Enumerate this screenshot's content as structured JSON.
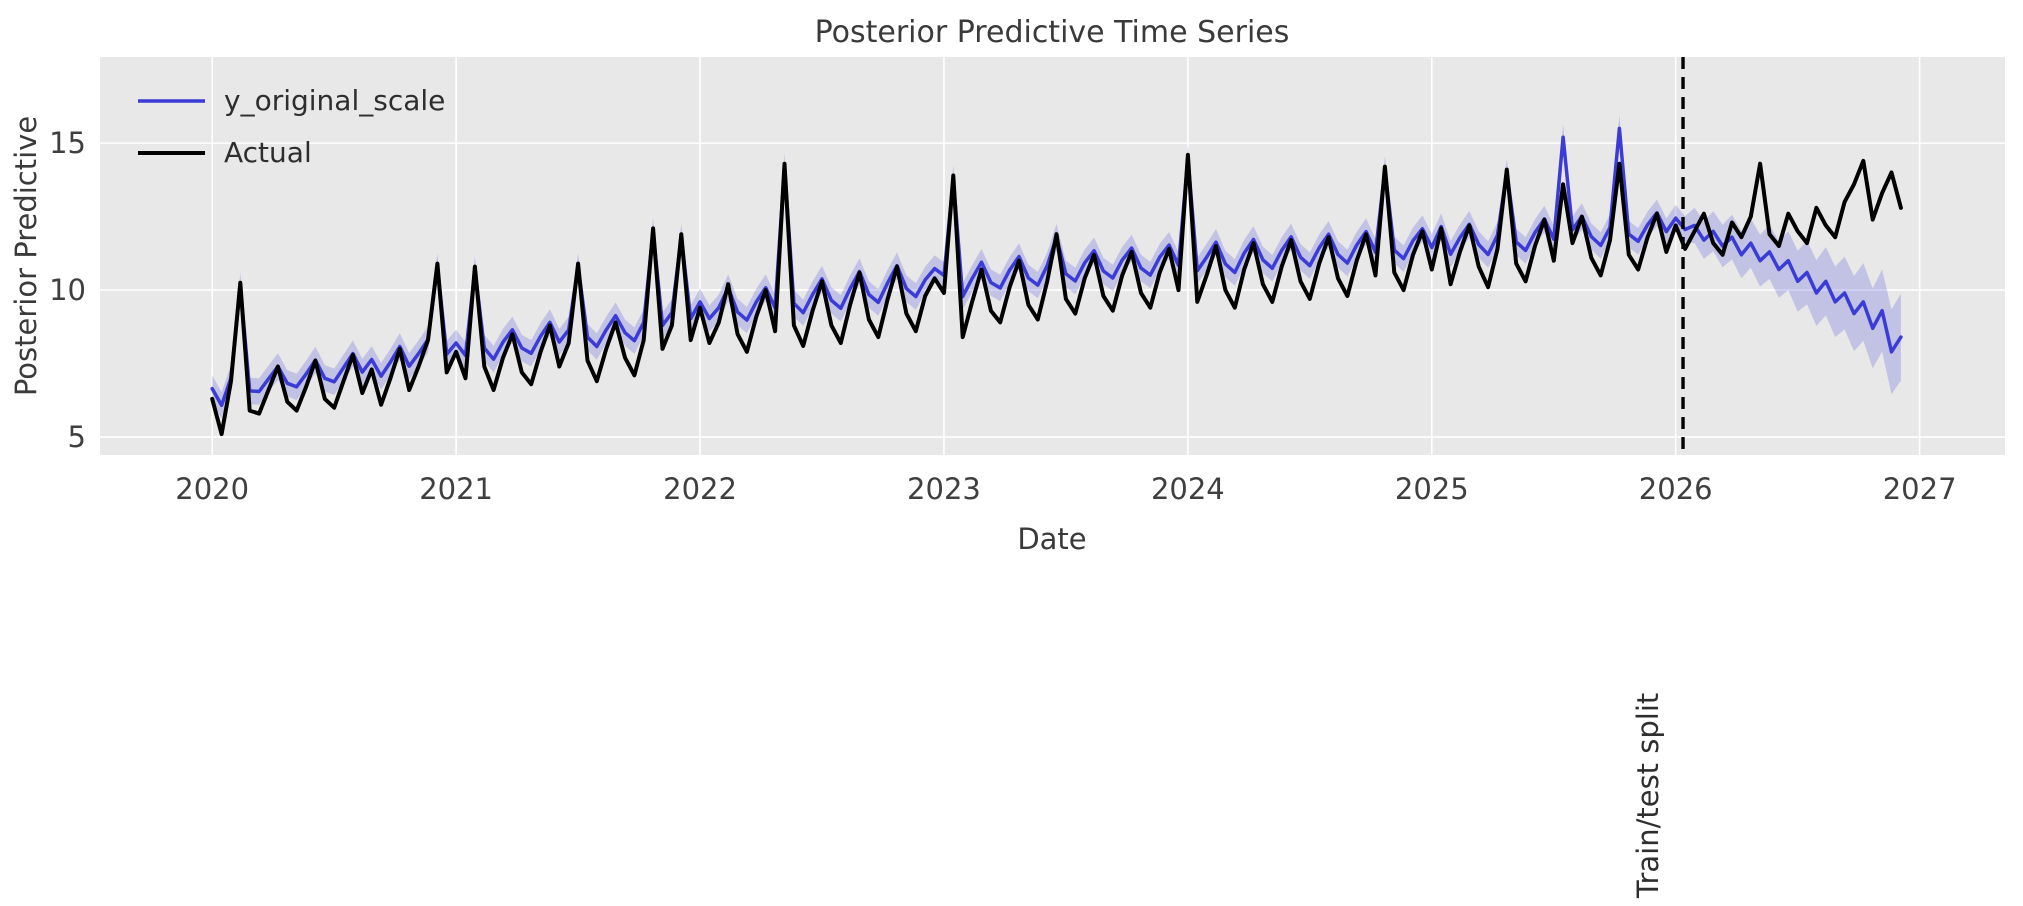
{
  "figure": {
    "title": "Posterior Predictive Time Series",
    "xlabel": "Date",
    "ylabel": "Posterior Predictive",
    "split_annotation": "Train/test split",
    "colors": {
      "plot_background": "#e8e8e8",
      "grid": "#ffffff",
      "prediction_line": "#3b3bd6",
      "actual_line": "#000000",
      "uncertainty_band": "rgba(80,80,215,0.25)",
      "split_line": "#000000",
      "text": "#3a3a3a",
      "tick_text": "#3f3f3f"
    }
  },
  "chart_data": {
    "type": "line",
    "title": "Posterior Predictive Time Series",
    "xlabel": "Date",
    "ylabel": "Posterior Predictive",
    "x_start": 2020.0,
    "x_step_years": 0.0384615,
    "n_points": 181,
    "xlim": [
      2019.54,
      2027.35
    ],
    "ylim": [
      4.39,
      17.93
    ],
    "xticks": [
      2020,
      2021,
      2022,
      2023,
      2024,
      2025,
      2026,
      2027
    ],
    "yticks": [
      5,
      10,
      15
    ],
    "grid": true,
    "legend_position": "upper left",
    "split_x": 2026.03,
    "split_label": "Train/test split",
    "series": [
      {
        "name": "y_original_scale",
        "color": "#3b3bd6",
        "width": 3.5,
        "values": [
          6.65,
          6.08,
          7.01,
          10.15,
          6.57,
          6.55,
          6.98,
          7.4,
          6.83,
          6.71,
          7.14,
          7.62,
          7.0,
          6.88,
          7.36,
          7.84,
          7.21,
          7.64,
          7.07,
          7.55,
          8.08,
          7.41,
          7.84,
          8.32,
          10.8,
          7.82,
          8.2,
          7.78,
          10.7,
          8.03,
          7.65,
          8.23,
          8.65,
          8.03,
          7.85,
          8.43,
          8.9,
          8.23,
          8.65,
          10.8,
          8.4,
          8.08,
          8.65,
          9.13,
          8.55,
          8.28,
          8.9,
          12.0,
          8.8,
          9.23,
          11.8,
          9.03,
          9.6,
          9.03,
          9.4,
          10.08,
          9.25,
          8.98,
          9.6,
          10.08,
          9.4,
          14.2,
          9.55,
          9.23,
          9.85,
          10.38,
          9.65,
          9.38,
          10.05,
          10.63,
          9.85,
          9.58,
          10.25,
          10.83,
          10.05,
          9.78,
          10.35,
          10.73,
          10.5,
          13.8,
          9.78,
          10.39,
          10.95,
          10.26,
          10.07,
          10.68,
          11.14,
          10.41,
          10.17,
          10.83,
          11.8,
          10.55,
          10.31,
          10.93,
          11.34,
          10.65,
          10.41,
          11.02,
          11.43,
          10.75,
          10.51,
          11.12,
          11.53,
          10.84,
          14.5,
          10.66,
          11.12,
          11.63,
          10.89,
          10.6,
          11.26,
          11.72,
          11.03,
          10.74,
          11.35,
          11.81,
          11.12,
          10.83,
          11.44,
          11.9,
          11.21,
          10.92,
          11.53,
          11.99,
          11.29,
          14.1,
          11.36,
          11.07,
          11.68,
          12.09,
          11.45,
          12.16,
          11.22,
          11.78,
          12.24,
          11.55,
          11.21,
          11.87,
          14.0,
          11.64,
          11.35,
          11.96,
          12.42,
          11.73,
          15.2,
          12.05,
          12.51,
          11.82,
          11.52,
          12.13,
          15.5,
          11.9,
          11.66,
          12.22,
          12.63,
          11.99,
          12.45,
          12.06,
          12.2,
          11.7,
          12.0,
          11.5,
          11.8,
          11.2,
          11.6,
          11.0,
          11.3,
          10.7,
          11.0,
          10.3,
          10.6,
          9.9,
          10.3,
          9.6,
          9.9,
          9.2,
          9.6,
          8.7,
          9.3,
          7.9,
          8.4
        ]
      },
      {
        "name": "Actual",
        "color": "#000000",
        "width": 4,
        "values": [
          6.3,
          5.1,
          6.9,
          10.25,
          5.9,
          5.8,
          6.6,
          7.4,
          6.2,
          5.9,
          6.7,
          7.6,
          6.3,
          6.0,
          6.9,
          7.8,
          6.5,
          7.3,
          6.1,
          7.0,
          8.0,
          6.6,
          7.4,
          8.3,
          10.9,
          7.2,
          7.9,
          7.0,
          10.8,
          7.4,
          6.6,
          7.7,
          8.5,
          7.2,
          6.8,
          7.9,
          8.8,
          7.4,
          8.2,
          10.9,
          7.6,
          6.9,
          8.0,
          8.9,
          7.7,
          7.1,
          8.3,
          12.1,
          8.0,
          8.8,
          11.9,
          8.3,
          9.4,
          8.2,
          8.9,
          10.2,
          8.5,
          7.9,
          9.1,
          10.0,
          8.6,
          14.3,
          8.8,
          8.1,
          9.3,
          10.3,
          8.8,
          8.2,
          9.5,
          10.6,
          9.0,
          8.4,
          9.7,
          10.8,
          9.2,
          8.6,
          9.8,
          10.4,
          9.9,
          13.9,
          8.4,
          9.6,
          10.7,
          9.3,
          8.9,
          10.1,
          11.0,
          9.5,
          9.0,
          10.3,
          11.9,
          9.7,
          9.2,
          10.4,
          11.2,
          9.8,
          9.3,
          10.5,
          11.3,
          9.9,
          9.4,
          10.6,
          11.4,
          10.0,
          14.6,
          9.6,
          10.5,
          11.5,
          10.0,
          9.4,
          10.7,
          11.6,
          10.2,
          9.6,
          10.8,
          11.7,
          10.3,
          9.7,
          10.9,
          11.8,
          10.4,
          9.8,
          11.0,
          11.9,
          10.5,
          14.2,
          10.6,
          10.0,
          11.2,
          12.0,
          10.7,
          12.1,
          10.2,
          11.3,
          12.2,
          10.8,
          10.1,
          11.4,
          14.1,
          10.9,
          10.3,
          11.5,
          12.4,
          11.0,
          13.6,
          11.6,
          12.5,
          11.1,
          10.5,
          11.7,
          14.3,
          11.2,
          10.7,
          11.8,
          12.6,
          11.3,
          12.2,
          11.4,
          12.0,
          12.6,
          11.6,
          11.2,
          12.3,
          11.8,
          12.5,
          14.3,
          11.9,
          11.5,
          12.6,
          12.0,
          11.6,
          12.8,
          12.2,
          11.8,
          13.0,
          13.6,
          14.4,
          12.4,
          13.3,
          14.0,
          12.8
        ]
      }
    ],
    "uncertainty_band": {
      "series": "y_original_scale",
      "halfwidth_train": 0.45,
      "halfwidth_test_start": 0.6,
      "halfwidth_test_growth_per_step": 0.04,
      "test_start_index": 158,
      "color": "rgba(80,80,215,0.25)"
    }
  }
}
